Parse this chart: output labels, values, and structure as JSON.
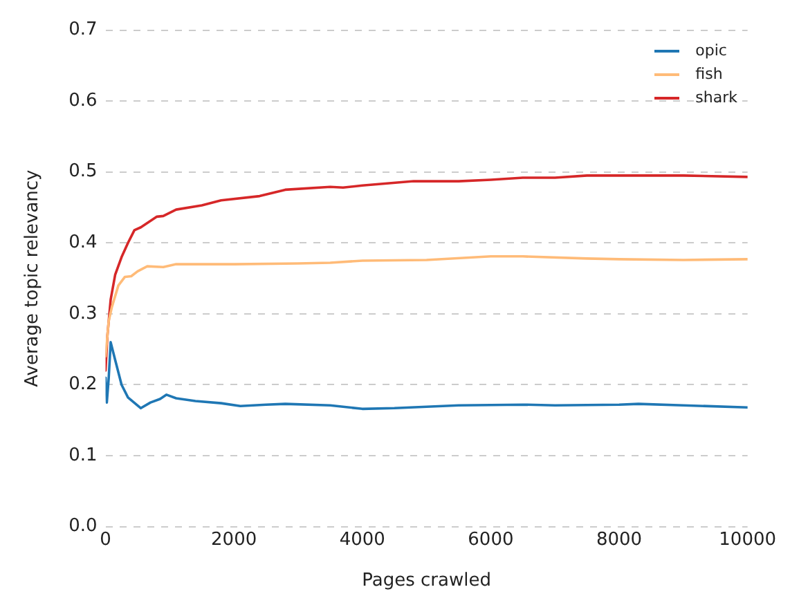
{
  "chart_data": {
    "type": "line",
    "xlabel": "Pages crawled",
    "ylabel": "Average topic relevancy",
    "xlim": [
      0,
      10000
    ],
    "xticks": [
      0,
      2000,
      4000,
      6000,
      8000,
      10000
    ],
    "ylim": [
      0,
      0.7
    ],
    "yticks": [
      {
        "value": 0,
        "label": "0.0"
      },
      0.1,
      0.2,
      0.3,
      0.4,
      0.5,
      0.6,
      0.7
    ],
    "grid": "y",
    "legend": "top right",
    "marker": "none",
    "line_style": "solid",
    "series": [
      {
        "name": "opic",
        "color": "#1f77b4",
        "x": [
          0,
          20,
          50,
          80,
          150,
          250,
          350,
          550,
          700,
          850,
          950,
          1100,
          1400,
          1800,
          2100,
          2500,
          2800,
          3500,
          4000,
          4500,
          5000,
          5500,
          6500,
          7000,
          8000,
          8300,
          9000,
          10000
        ],
        "values": [
          0.21,
          0.175,
          0.21,
          0.26,
          0.235,
          0.2,
          0.182,
          0.167,
          0.175,
          0.18,
          0.186,
          0.181,
          0.177,
          0.174,
          0.17,
          0.172,
          0.173,
          0.171,
          0.166,
          0.167,
          0.169,
          0.171,
          0.172,
          0.171,
          0.172,
          0.173,
          0.171,
          0.168
        ]
      },
      {
        "name": "fish",
        "color": "#ffbb78",
        "x": [
          0,
          50,
          100,
          200,
          300,
          400,
          500,
          650,
          900,
          1100,
          1500,
          2000,
          3000,
          3500,
          4000,
          5000,
          6000,
          6500,
          7500,
          8000,
          9000,
          10000
        ],
        "values": [
          0.24,
          0.29,
          0.31,
          0.34,
          0.352,
          0.353,
          0.36,
          0.367,
          0.366,
          0.37,
          0.37,
          0.37,
          0.371,
          0.372,
          0.375,
          0.376,
          0.381,
          0.381,
          0.378,
          0.377,
          0.376,
          0.377
        ]
      },
      {
        "name": "shark",
        "color": "#d62728",
        "x": [
          0,
          30,
          80,
          150,
          250,
          350,
          450,
          550,
          800,
          900,
          1100,
          1500,
          1800,
          2400,
          2800,
          3500,
          3700,
          4000,
          4800,
          5500,
          6000,
          6500,
          7000,
          7500,
          8500,
          9000,
          10000
        ],
        "values": [
          0.22,
          0.27,
          0.32,
          0.355,
          0.38,
          0.4,
          0.418,
          0.422,
          0.437,
          0.438,
          0.447,
          0.453,
          0.46,
          0.466,
          0.475,
          0.479,
          0.478,
          0.481,
          0.487,
          0.487,
          0.489,
          0.492,
          0.492,
          0.495,
          0.495,
          0.495,
          0.493
        ]
      }
    ]
  }
}
